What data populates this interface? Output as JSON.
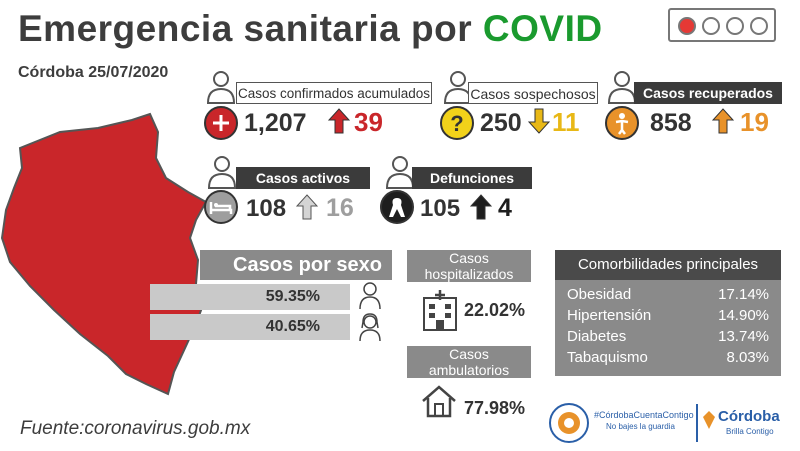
{
  "header": {
    "title_main": "Emergencia sanitaria por",
    "title_accent": "COVID",
    "date": "Córdoba 25/07/2020"
  },
  "colors": {
    "accent_green": "#1a9a2e",
    "map_red": "#c9262a",
    "up_red": "#c9262a",
    "down_yellow": "#e8b816",
    "orange": "#e8922a",
    "gray_arrow": "#9e9e9e",
    "dark": "#333333"
  },
  "traffic_light": [
    "#e53935",
    "#ffffff",
    "#ffffff",
    "#ffffff"
  ],
  "stats": {
    "confirmados": {
      "label": "Casos confirmados acumulados",
      "value": "1,207",
      "delta": "39",
      "icon": "plus-icon"
    },
    "sospechosos": {
      "label": "Casos sospechosos",
      "value": "250",
      "delta": "11",
      "icon": "question-icon"
    },
    "recuperados": {
      "label": "Casos recuperados",
      "value": "858",
      "delta": "19",
      "icon": "recovered-person-icon"
    },
    "activos": {
      "label": "Casos activos",
      "value": "108",
      "delta": "16",
      "icon": "hospital-bed-icon"
    },
    "defunciones": {
      "label": "Defunciones",
      "value": "105",
      "delta": "4",
      "icon": "mourning-ribbon-icon"
    }
  },
  "sexo": {
    "title": "Casos por sexo",
    "hombres": "59.35%",
    "mujeres": "40.65%"
  },
  "hospitalizados": {
    "title_line1": "Casos",
    "title_line2": "hospitalizados",
    "value": "22.02%"
  },
  "ambulatorios": {
    "title_line1": "Casos",
    "title_line2": "ambulatorios",
    "value": "77.98%"
  },
  "comorbilidades": {
    "title": "Comorbilidades principales",
    "items": [
      {
        "name": "Obesidad",
        "value": "17.14%"
      },
      {
        "name": "Hipertensión",
        "value": "14.90%"
      },
      {
        "name": "Diabetes",
        "value": "13.74%"
      },
      {
        "name": "Tabaquismo",
        "value": "8.03%"
      }
    ]
  },
  "source": "Fuente:coronavirus.gob.mx",
  "logos": {
    "hashtag": "#CórdobaCuentaContigo",
    "tagline": "No bajes la guardia",
    "city": "Córdoba",
    "city_tagline": "Brilla Contigo"
  }
}
